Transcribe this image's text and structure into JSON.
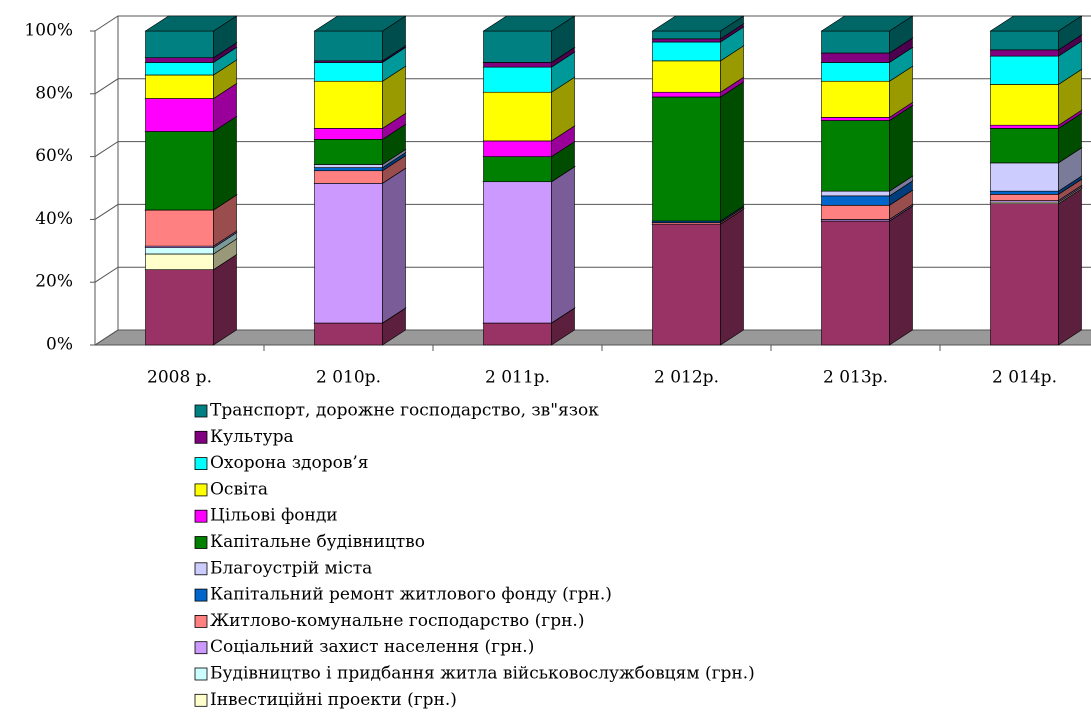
{
  "chart_data": {
    "type": "stacked_bar_3d",
    "categories": [
      "2008 р.",
      "2 010р.",
      "2 011р.",
      "2 012р.",
      "2 013р.",
      "2 014р."
    ],
    "ylim": [
      0,
      100
    ],
    "yticks": [
      {
        "value": 0,
        "label": "0%"
      },
      {
        "value": 20,
        "label": "20%"
      },
      {
        "value": 40,
        "label": "40%"
      },
      {
        "value": 60,
        "label": "60%"
      },
      {
        "value": 80,
        "label": "80%"
      },
      {
        "value": 100,
        "label": "100%"
      }
    ],
    "grid": true,
    "series": [
      {
        "color": "#993366",
        "values": [
          24,
          7,
          7,
          38.5,
          39.5,
          45
        ]
      },
      {
        "name": "Інвестиційні проекти (грн.)",
        "color": "#ffffcc",
        "values": [
          5,
          0,
          0,
          0,
          0,
          0.5
        ]
      },
      {
        "name": "Будівництво і придбання житла військовослужбовцям (грн.)",
        "color": "#ccffff",
        "values": [
          2,
          0,
          0,
          0,
          0,
          0
        ]
      },
      {
        "name": "Соціальний захист населення (грн.)",
        "color": "#cc99ff",
        "values": [
          0.5,
          44.5,
          45,
          0,
          0.5,
          0.5
        ]
      },
      {
        "name": "Житлово-комунальне господарство (грн.)",
        "color": "#ff8080",
        "values": [
          11.5,
          4,
          0,
          0.5,
          4.5,
          2
        ]
      },
      {
        "name": "Капітальний ремонт житлового фонду (грн.)",
        "color": "#0066cc",
        "values": [
          0,
          1,
          0,
          0.5,
          3,
          1
        ]
      },
      {
        "name": "Благоустрій міста",
        "color": "#ccccff",
        "values": [
          0,
          1,
          0,
          0,
          1.5,
          9
        ]
      },
      {
        "name": "Капітальне будівництво",
        "color": "#008000",
        "values": [
          25,
          8,
          8,
          39.5,
          22.5,
          11
        ]
      },
      {
        "name": "Цільові фонди",
        "color": "#ff00ff",
        "values": [
          10.5,
          3.5,
          5,
          1.5,
          1,
          1
        ]
      },
      {
        "name": "Освіта",
        "color": "#ffff00",
        "values": [
          7.5,
          15,
          15.5,
          10,
          11.5,
          13
        ]
      },
      {
        "name": "Охорона здоров’я",
        "color": "#00ffff",
        "values": [
          4,
          6,
          8,
          6,
          6,
          9
        ]
      },
      {
        "name": "Культура",
        "color": "#800080",
        "values": [
          1.5,
          0.5,
          1.5,
          1,
          3,
          2
        ]
      },
      {
        "name": "Транспорт, дорожне господарство, зв\"язок",
        "color": "#008080",
        "values": [
          8.5,
          9.5,
          10,
          2.5,
          7,
          6
        ]
      }
    ]
  }
}
